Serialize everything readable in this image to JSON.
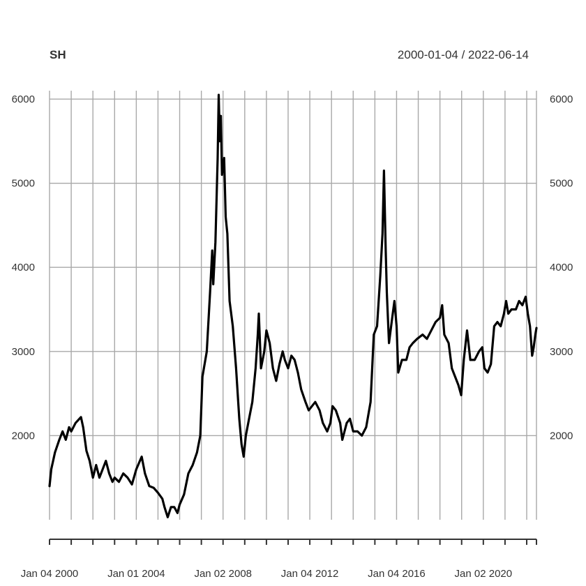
{
  "chart_data": {
    "type": "line",
    "title": "SH",
    "date_range_label": "2000-01-04 / 2022-06-14",
    "x_start_year": 2000.0,
    "x_end_year": 2022.45,
    "ylim": [
      1000,
      6100
    ],
    "grid": true,
    "y_ticks": [
      {
        "value": 2000,
        "label": "2000"
      },
      {
        "value": 3000,
        "label": "3000"
      },
      {
        "value": 4000,
        "label": "4000"
      },
      {
        "value": 5000,
        "label": "5000"
      },
      {
        "value": 6000,
        "label": "6000"
      }
    ],
    "x_grid_years": [
      2000.0,
      2001.0,
      2002.0,
      2003.0,
      2004.0,
      2005.0,
      2006.0,
      2007.0,
      2008.0,
      2009.0,
      2010.0,
      2011.0,
      2012.0,
      2013.0,
      2014.0,
      2015.0,
      2016.0,
      2017.0,
      2018.0,
      2019.0,
      2020.0,
      2021.0,
      2022.0,
      2022.45
    ],
    "x_labels": [
      {
        "year": 2000.0,
        "label": "Jan 04 2000"
      },
      {
        "year": 2004.0,
        "label": "Jan 01 2004"
      },
      {
        "year": 2008.0,
        "label": "Jan 02 2008"
      },
      {
        "year": 2012.0,
        "label": "Jan 04 2012"
      },
      {
        "year": 2016.0,
        "label": "Jan 04 2016"
      },
      {
        "year": 2020.0,
        "label": "Jan 02 2020"
      }
    ],
    "series": [
      {
        "name": "SH",
        "points": [
          [
            2000.0,
            1400
          ],
          [
            2000.08,
            1600
          ],
          [
            2000.25,
            1800
          ],
          [
            2000.45,
            1950
          ],
          [
            2000.6,
            2050
          ],
          [
            2000.75,
            1950
          ],
          [
            2000.9,
            2100
          ],
          [
            2001.0,
            2050
          ],
          [
            2001.2,
            2150
          ],
          [
            2001.45,
            2220
          ],
          [
            2001.55,
            2100
          ],
          [
            2001.7,
            1820
          ],
          [
            2001.85,
            1700
          ],
          [
            2002.0,
            1500
          ],
          [
            2002.15,
            1650
          ],
          [
            2002.3,
            1500
          ],
          [
            2002.45,
            1600
          ],
          [
            2002.6,
            1700
          ],
          [
            2002.75,
            1550
          ],
          [
            2002.9,
            1450
          ],
          [
            2003.0,
            1500
          ],
          [
            2003.2,
            1450
          ],
          [
            2003.4,
            1550
          ],
          [
            2003.6,
            1500
          ],
          [
            2003.8,
            1420
          ],
          [
            2004.0,
            1600
          ],
          [
            2004.25,
            1750
          ],
          [
            2004.4,
            1550
          ],
          [
            2004.6,
            1400
          ],
          [
            2004.8,
            1380
          ],
          [
            2005.0,
            1320
          ],
          [
            2005.2,
            1250
          ],
          [
            2005.3,
            1150
          ],
          [
            2005.45,
            1030
          ],
          [
            2005.6,
            1150
          ],
          [
            2005.75,
            1150
          ],
          [
            2005.9,
            1080
          ],
          [
            2006.0,
            1180
          ],
          [
            2006.2,
            1300
          ],
          [
            2006.4,
            1550
          ],
          [
            2006.6,
            1650
          ],
          [
            2006.8,
            1800
          ],
          [
            2006.95,
            2000
          ],
          [
            2007.05,
            2700
          ],
          [
            2007.25,
            3000
          ],
          [
            2007.4,
            3700
          ],
          [
            2007.5,
            4200
          ],
          [
            2007.55,
            3800
          ],
          [
            2007.65,
            4300
          ],
          [
            2007.75,
            5300
          ],
          [
            2007.8,
            6050
          ],
          [
            2007.85,
            5500
          ],
          [
            2007.9,
            5800
          ],
          [
            2007.95,
            5100
          ],
          [
            2008.05,
            5300
          ],
          [
            2008.12,
            4600
          ],
          [
            2008.2,
            4400
          ],
          [
            2008.3,
            3600
          ],
          [
            2008.45,
            3300
          ],
          [
            2008.6,
            2800
          ],
          [
            2008.75,
            2200
          ],
          [
            2008.85,
            1900
          ],
          [
            2008.95,
            1750
          ],
          [
            2009.05,
            2000
          ],
          [
            2009.2,
            2200
          ],
          [
            2009.35,
            2400
          ],
          [
            2009.5,
            2800
          ],
          [
            2009.6,
            3200
          ],
          [
            2009.65,
            3450
          ],
          [
            2009.75,
            2800
          ],
          [
            2009.9,
            3000
          ],
          [
            2010.0,
            3250
          ],
          [
            2010.15,
            3100
          ],
          [
            2010.3,
            2800
          ],
          [
            2010.45,
            2650
          ],
          [
            2010.6,
            2850
          ],
          [
            2010.75,
            3000
          ],
          [
            2010.85,
            2900
          ],
          [
            2011.0,
            2800
          ],
          [
            2011.15,
            2950
          ],
          [
            2011.3,
            2900
          ],
          [
            2011.45,
            2750
          ],
          [
            2011.6,
            2550
          ],
          [
            2011.8,
            2400
          ],
          [
            2011.95,
            2300
          ],
          [
            2012.1,
            2350
          ],
          [
            2012.25,
            2400
          ],
          [
            2012.45,
            2300
          ],
          [
            2012.6,
            2150
          ],
          [
            2012.8,
            2050
          ],
          [
            2012.95,
            2150
          ],
          [
            2013.05,
            2350
          ],
          [
            2013.2,
            2300
          ],
          [
            2013.4,
            2150
          ],
          [
            2013.5,
            1950
          ],
          [
            2013.7,
            2150
          ],
          [
            2013.85,
            2200
          ],
          [
            2014.0,
            2050
          ],
          [
            2014.2,
            2050
          ],
          [
            2014.4,
            2000
          ],
          [
            2014.6,
            2100
          ],
          [
            2014.8,
            2400
          ],
          [
            2014.95,
            3200
          ],
          [
            2015.1,
            3300
          ],
          [
            2015.25,
            3900
          ],
          [
            2015.35,
            4400
          ],
          [
            2015.42,
            5150
          ],
          [
            2015.5,
            4200
          ],
          [
            2015.55,
            3700
          ],
          [
            2015.65,
            3100
          ],
          [
            2015.8,
            3400
          ],
          [
            2015.9,
            3600
          ],
          [
            2016.0,
            3300
          ],
          [
            2016.08,
            2750
          ],
          [
            2016.25,
            2900
          ],
          [
            2016.45,
            2900
          ],
          [
            2016.6,
            3050
          ],
          [
            2016.75,
            3100
          ],
          [
            2016.95,
            3150
          ],
          [
            2017.2,
            3200
          ],
          [
            2017.4,
            3150
          ],
          [
            2017.6,
            3250
          ],
          [
            2017.8,
            3350
          ],
          [
            2018.0,
            3400
          ],
          [
            2018.1,
            3550
          ],
          [
            2018.2,
            3200
          ],
          [
            2018.4,
            3100
          ],
          [
            2018.55,
            2800
          ],
          [
            2018.7,
            2700
          ],
          [
            2018.85,
            2600
          ],
          [
            2018.98,
            2480
          ],
          [
            2019.1,
            2900
          ],
          [
            2019.25,
            3250
          ],
          [
            2019.4,
            2900
          ],
          [
            2019.6,
            2900
          ],
          [
            2019.8,
            3000
          ],
          [
            2019.95,
            3050
          ],
          [
            2020.05,
            2800
          ],
          [
            2020.2,
            2750
          ],
          [
            2020.35,
            2850
          ],
          [
            2020.5,
            3300
          ],
          [
            2020.65,
            3350
          ],
          [
            2020.8,
            3300
          ],
          [
            2020.95,
            3450
          ],
          [
            2021.05,
            3600
          ],
          [
            2021.15,
            3450
          ],
          [
            2021.3,
            3500
          ],
          [
            2021.5,
            3500
          ],
          [
            2021.65,
            3600
          ],
          [
            2021.8,
            3550
          ],
          [
            2021.95,
            3650
          ],
          [
            2022.05,
            3450
          ],
          [
            2022.15,
            3300
          ],
          [
            2022.25,
            2950
          ],
          [
            2022.32,
            3050
          ],
          [
            2022.4,
            3200
          ],
          [
            2022.45,
            3280
          ]
        ]
      }
    ]
  }
}
